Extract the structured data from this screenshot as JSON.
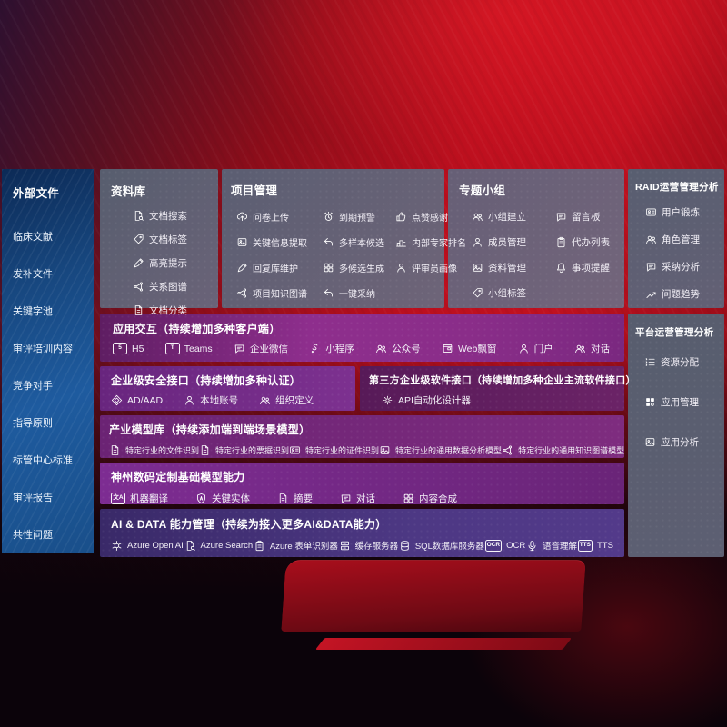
{
  "colors": {
    "background_red": "#c01020",
    "sidebar_blue": "#1e5b9f",
    "panel_gray": "#5f6174",
    "band_purple": "#8a2d89",
    "band_dark_magenta": "#6b2367",
    "band_indigo": "#4d3884",
    "text": "#ffffff"
  },
  "sidebar": {
    "title": "外部文件",
    "items": [
      "临床文献",
      "发补文件",
      "关键字池",
      "审评培训内容",
      "竞争对手",
      "指导原则",
      "标管中心标准",
      "审评报告",
      "共性问题"
    ]
  },
  "panels": {
    "repository": {
      "title": "资料库",
      "items": [
        {
          "icon": "doc-search",
          "label": "文档搜索"
        },
        {
          "icon": "tag",
          "label": "文档标签"
        },
        {
          "icon": "highlight-pen",
          "label": "高亮提示"
        },
        {
          "icon": "relation-graph",
          "label": "关系图谱"
        },
        {
          "icon": "doc-category",
          "label": "文档分类"
        }
      ]
    },
    "project": {
      "title": "项目管理",
      "items": [
        {
          "icon": "cloud-upload",
          "label": "问卷上传"
        },
        {
          "icon": "alarm",
          "label": "到期预警"
        },
        {
          "icon": "thumb-up",
          "label": "点赞感谢"
        },
        {
          "icon": "key-info-extract",
          "label": "关键信息提取"
        },
        {
          "icon": "reply-arrow",
          "label": "多样本候选"
        },
        {
          "icon": "ranking",
          "label": "内部专家排名"
        },
        {
          "icon": "pen",
          "label": "回复库维护"
        },
        {
          "icon": "multi-generate",
          "label": "多候选生成"
        },
        {
          "icon": "person",
          "label": "评审员画像"
        },
        {
          "icon": "relation-graph",
          "label": "项目知识图谱"
        },
        {
          "icon": "adopt-arrow",
          "label": "一键采纳"
        }
      ]
    },
    "groups": {
      "title": "专题小组",
      "items": [
        {
          "icon": "people",
          "label": "小组建立"
        },
        {
          "icon": "bbs-board",
          "label": "留言板"
        },
        {
          "icon": "person-add",
          "label": "成员管理"
        },
        {
          "icon": "clipboard",
          "label": "代办列表"
        },
        {
          "icon": "album",
          "label": "资料管理"
        },
        {
          "icon": "bell",
          "label": "事项提醒"
        },
        {
          "icon": "tag",
          "label": "小组标签"
        }
      ]
    },
    "raid": {
      "title": "RAID运营管理分析",
      "items": [
        {
          "icon": "id-card",
          "label": "用户锻炼"
        },
        {
          "icon": "people",
          "label": "角色管理"
        },
        {
          "icon": "chat-qa",
          "label": "采纳分析"
        },
        {
          "icon": "trend-chart",
          "label": "问题趋势"
        }
      ]
    },
    "platform": {
      "title": "平台运营管理分析",
      "items": [
        {
          "icon": "list",
          "label": "资源分配"
        },
        {
          "icon": "app-grid",
          "label": "应用管理"
        },
        {
          "icon": "app-analysis",
          "label": "应用分析"
        }
      ]
    }
  },
  "bands": {
    "interaction": {
      "title": "应用交互（持续增加多种客户端）",
      "items": [
        {
          "icon": "h5-badge",
          "label": "H5"
        },
        {
          "icon": "teams",
          "label": "Teams"
        },
        {
          "icon": "wechat-work",
          "label": "企业微信"
        },
        {
          "icon": "mini-program",
          "label": "小程序"
        },
        {
          "icon": "official-account",
          "label": "公众号"
        },
        {
          "icon": "web-window",
          "label": "Web飘窗"
        },
        {
          "icon": "portal",
          "label": "门户"
        },
        {
          "icon": "dialog",
          "label": "对话"
        }
      ]
    },
    "security": {
      "title": "企业级安全接口（持续增加多种认证）",
      "items": [
        {
          "icon": "ad-aad",
          "label": "AD/AAD"
        },
        {
          "icon": "local-account",
          "label": "本地账号"
        },
        {
          "icon": "org-define",
          "label": "组织定义"
        }
      ]
    },
    "third_party": {
      "title": "第三方企业级软件接口（持续增加多种企业主流软件接口）",
      "items": [
        {
          "icon": "api-designer",
          "label": "API自动化设计器"
        }
      ]
    },
    "models": {
      "title": "产业模型库（持续添加端到端场景模型）",
      "items": [
        {
          "icon": "doc",
          "label": "特定行业的文件识别"
        },
        {
          "icon": "receipt",
          "label": "特定行业的票据识别"
        },
        {
          "icon": "id-card",
          "label": "特定行业的证件识别"
        },
        {
          "icon": "data-analysis-model",
          "label": "特定行业的通用数据分析模型"
        },
        {
          "icon": "relation-graph",
          "label": "特定行业的通用知识图谱模型"
        }
      ]
    },
    "base_models": {
      "title": "神州数码定制基础模型能力",
      "items": [
        {
          "icon": "translate",
          "label": "机器翻译"
        },
        {
          "icon": "shield-a",
          "label": "关键实体"
        },
        {
          "icon": "summary-doc",
          "label": "摘要"
        },
        {
          "icon": "chat",
          "label": "对话"
        },
        {
          "icon": "compose",
          "label": "内容合成"
        }
      ]
    },
    "ai_data": {
      "title": "AI & DATA 能力管理（持续为接入更多AI&DATA能力）",
      "items": [
        {
          "icon": "openai",
          "label": "Azure Open AI"
        },
        {
          "icon": "azure-search",
          "label": "Azure Search"
        },
        {
          "icon": "form-recognizer",
          "label": "Azure 表单识别器"
        },
        {
          "icon": "cache-server",
          "label": "缓存服务器"
        },
        {
          "icon": "sql-database",
          "label": "SQL数据库服务器"
        },
        {
          "icon": "ocr",
          "label": "OCR"
        },
        {
          "icon": "speech",
          "label": "语音理解"
        },
        {
          "icon": "tts",
          "label": "TTS"
        }
      ]
    }
  }
}
